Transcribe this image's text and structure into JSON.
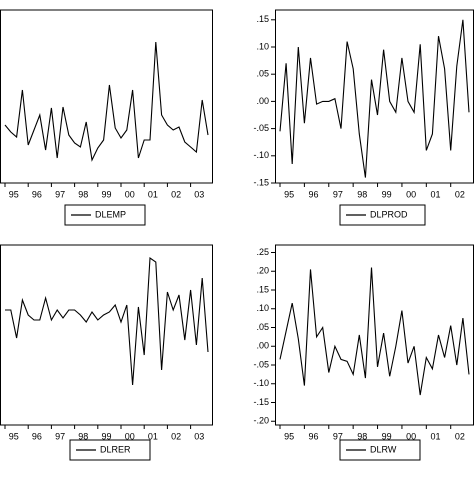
{
  "chart_data": [
    {
      "type": "line",
      "categories": [
        "95",
        null,
        null,
        null,
        "96",
        null,
        null,
        null,
        "97",
        null,
        null,
        null,
        "98",
        null,
        null,
        null,
        "99",
        null,
        null,
        null,
        "00",
        null,
        null,
        null,
        "01",
        null,
        null,
        null,
        "02",
        null,
        null,
        null,
        "03",
        null,
        null,
        null
      ],
      "series": [
        {
          "name": "DLEMP",
          "color": "#000000",
          "values": [
            -0.013,
            -0.02,
            -0.025,
            0.022,
            -0.033,
            -0.018,
            -0.003,
            -0.038,
            0.004,
            -0.046,
            0.005,
            -0.023,
            -0.031,
            -0.035,
            -0.01,
            -0.048,
            -0.036,
            -0.028,
            0.027,
            -0.016,
            -0.026,
            -0.018,
            0.022,
            -0.046,
            -0.028,
            -0.028,
            0.07,
            -0.003,
            -0.013,
            -0.018,
            -0.015,
            -0.03,
            -0.035,
            -0.04,
            0.012,
            -0.023
          ]
        }
      ],
      "ylim": [
        -0.071,
        0.102
      ]
    },
    {
      "type": "line",
      "categories": [
        "95",
        null,
        null,
        null,
        "96",
        null,
        null,
        null,
        "97",
        null,
        null,
        null,
        "98",
        null,
        null,
        null,
        "99",
        null,
        null,
        null,
        "00",
        null,
        null,
        null,
        "01",
        null,
        null,
        null,
        "02",
        null,
        null,
        null
      ],
      "series": [
        {
          "name": "DLPROD",
          "color": "#000000",
          "values": [
            -0.055,
            0.07,
            -0.115,
            0.1,
            -0.04,
            0.08,
            -0.005,
            0.0,
            0.0,
            0.005,
            -0.05,
            0.11,
            0.06,
            -0.06,
            -0.14,
            0.04,
            -0.025,
            0.095,
            0.0,
            -0.02,
            0.08,
            0.0,
            -0.02,
            0.105,
            -0.09,
            -0.06,
            0.12,
            0.06,
            -0.09,
            0.065,
            0.15,
            -0.02
          ]
        }
      ],
      "ylim": [
        -0.15,
        0.168
      ],
      "yticks": [
        {
          "value": 0.15,
          "label": ".15"
        },
        {
          "value": 0.1,
          "label": ".10"
        },
        {
          "value": 0.05,
          "label": ".05"
        },
        {
          "value": 0,
          "label": ".00"
        },
        {
          "value": -0.05,
          "label": "-.05"
        },
        {
          "value": -0.1,
          "label": "-.10"
        },
        {
          "value": -0.15,
          "label": "-.15"
        }
      ]
    },
    {
      "type": "line",
      "categories": [
        "95",
        null,
        null,
        null,
        "96",
        null,
        null,
        null,
        "97",
        null,
        null,
        null,
        "98",
        null,
        null,
        null,
        "99",
        null,
        null,
        null,
        "00",
        null,
        null,
        null,
        "01",
        null,
        null,
        null,
        "02",
        null,
        null,
        null,
        "03",
        null,
        null,
        null
      ],
      "series": [
        {
          "name": "DLRER",
          "color": "#000000",
          "values": [
            0.01,
            0.01,
            -0.018,
            0.02,
            0.005,
            0.0,
            0.0,
            0.022,
            0.0,
            0.01,
            0.002,
            0.01,
            0.01,
            0.005,
            -0.002,
            0.008,
            0.0,
            0.005,
            0.008,
            0.015,
            -0.002,
            0.015,
            -0.065,
            0.013,
            -0.035,
            0.062,
            0.058,
            -0.05,
            0.028,
            0.01,
            0.025,
            -0.02,
            0.03,
            -0.025,
            0.042,
            -0.032
          ]
        }
      ],
      "ylim": [
        -0.105,
        0.075
      ]
    },
    {
      "type": "line",
      "categories": [
        "95",
        null,
        null,
        null,
        "96",
        null,
        null,
        null,
        "97",
        null,
        null,
        null,
        "98",
        null,
        null,
        null,
        "99",
        null,
        null,
        null,
        "00",
        null,
        null,
        null,
        "01",
        null,
        null,
        null,
        "02",
        null,
        null,
        null
      ],
      "series": [
        {
          "name": "DLRW",
          "color": "#000000",
          "values": [
            -0.035,
            0.04,
            0.115,
            0.02,
            -0.105,
            0.205,
            0.025,
            0.05,
            -0.07,
            0.0,
            -0.035,
            -0.04,
            -0.075,
            0.03,
            -0.085,
            0.21,
            -0.055,
            0.035,
            -0.08,
            0.0,
            0.095,
            -0.045,
            0.0,
            -0.13,
            -0.03,
            -0.06,
            0.03,
            -0.03,
            0.055,
            -0.05,
            0.075,
            -0.075
          ]
        }
      ],
      "ylim": [
        -0.21,
        0.27
      ],
      "yticks": [
        {
          "value": 0.25,
          "label": ".25"
        },
        {
          "value": 0.2,
          "label": ".20"
        },
        {
          "value": 0.15,
          "label": ".15"
        },
        {
          "value": 0.1,
          "label": ".10"
        },
        {
          "value": 0.05,
          "label": ".05"
        },
        {
          "value": 0,
          "label": ".00"
        },
        {
          "value": -0.05,
          "label": "-.05"
        },
        {
          "value": -0.1,
          "label": "-.10"
        },
        {
          "value": -0.15,
          "label": "-.15"
        },
        {
          "value": -0.2,
          "label": "-.20"
        }
      ]
    }
  ]
}
